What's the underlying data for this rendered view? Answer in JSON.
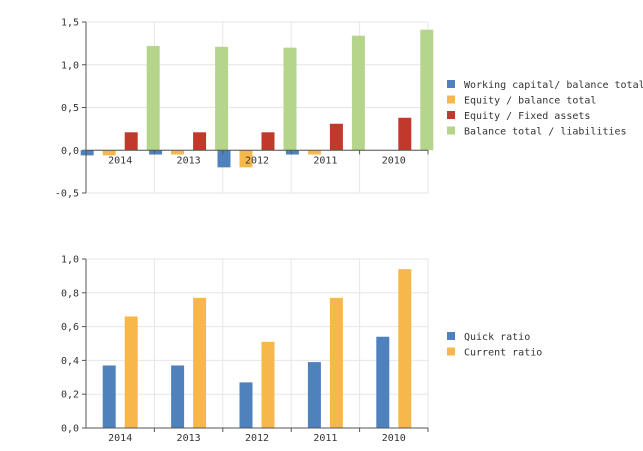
{
  "chart_data": [
    {
      "type": "bar",
      "categories": [
        "2014",
        "2013",
        "2012",
        "2011",
        "2010"
      ],
      "series": [
        {
          "name": "Working capital/ balance total",
          "color": "#4f81bd",
          "values": [
            -0.06,
            -0.05,
            -0.2,
            -0.05,
            null
          ]
        },
        {
          "name": "Equity / balance total",
          "color": "#f7b84b",
          "values": [
            -0.06,
            -0.05,
            -0.2,
            -0.05,
            null
          ]
        },
        {
          "name": "Equity / Fixed assets",
          "color": "#c0392b",
          "values": [
            0.21,
            0.21,
            0.21,
            0.31,
            0.38
          ]
        },
        {
          "name": "Balance total / liabilities",
          "color": "#b5d58a",
          "values": [
            1.22,
            1.21,
            1.2,
            1.34,
            1.41
          ]
        }
      ],
      "yticks": [
        "1,5",
        "1,0",
        "0,5",
        "0,0",
        "-0,5"
      ],
      "ylim": [
        -0.5,
        1.5
      ],
      "grid": true,
      "legend_position": "right",
      "category_labels_at_zero": true
    },
    {
      "type": "bar",
      "categories": [
        "2014",
        "2013",
        "2012",
        "2011",
        "2010"
      ],
      "series": [
        {
          "name": "Quick ratio",
          "color": "#4f81bd",
          "values": [
            0.37,
            0.37,
            0.27,
            0.39,
            0.54
          ]
        },
        {
          "name": "Current ratio",
          "color": "#f7b84b",
          "values": [
            0.66,
            0.77,
            0.51,
            0.77,
            0.94
          ]
        }
      ],
      "yticks": [
        "1,0",
        "0,8",
        "0,6",
        "0,4",
        "0,2",
        "0,0"
      ],
      "ylim": [
        0,
        1
      ],
      "grid": true,
      "legend_position": "right",
      "category_labels_at_zero": false
    }
  ]
}
